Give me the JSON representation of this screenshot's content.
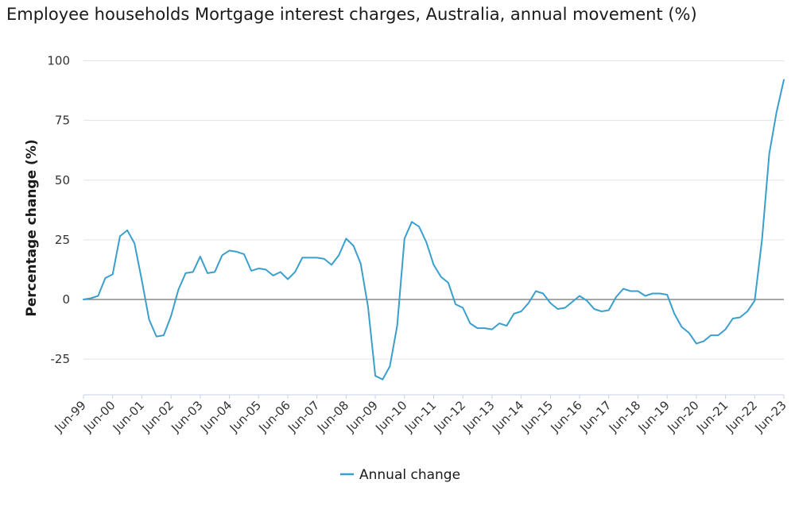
{
  "chart_data": {
    "type": "line",
    "title": "Employee households Mortgage interest charges, Australia, annual movement (%)",
    "ylabel": "Percentage change (%)",
    "xlabel": "",
    "ylim": [
      -40,
      100
    ],
    "yticks": [
      -25,
      0,
      25,
      50,
      75,
      100
    ],
    "ytick_labels": [
      "-25",
      "0",
      "25",
      "50",
      "75",
      "100"
    ],
    "xtick_labels": [
      "Jun-99",
      "Jun-00",
      "Jun-01",
      "Jun-02",
      "Jun-03",
      "Jun-04",
      "Jun-05",
      "Jun-06",
      "Jun-07",
      "Jun-08",
      "Jun-09",
      "Jun-10",
      "Jun-11",
      "Jun-12",
      "Jun-13",
      "Jun-14",
      "Jun-15",
      "Jun-16",
      "Jun-17",
      "Jun-18",
      "Jun-19",
      "Jun-20",
      "Jun-21",
      "Jun-22",
      "Jun-23"
    ],
    "grid": true,
    "legend_position": "bottom-center",
    "series": [
      {
        "name": "Annual change",
        "color": "#3a9fcc",
        "values": [
          0,
          0.5,
          1.5,
          9,
          10.5,
          26.5,
          29,
          23.5,
          8,
          -8.5,
          -15.5,
          -15,
          -7,
          4,
          11,
          11.5,
          18,
          11,
          11.5,
          18.5,
          20.5,
          20,
          19,
          12,
          13,
          12.5,
          10,
          11.5,
          8.5,
          11.5,
          17.5,
          17.5,
          17.5,
          17,
          14.5,
          18.5,
          25.5,
          22.5,
          15,
          -3,
          -32,
          -33.5,
          -28,
          -11,
          25.5,
          32.5,
          30.5,
          24,
          14.5,
          9.5,
          7,
          -2,
          -3.5,
          -10,
          -12,
          -12,
          -12.5,
          -10,
          -11,
          -6,
          -5,
          -1.5,
          3.5,
          2.5,
          -1.5,
          -4,
          -3.5,
          -1,
          1.5,
          -0.5,
          -4,
          -5,
          -4.5,
          1,
          4.5,
          3.5,
          3.5,
          1.5,
          2.5,
          2.5,
          2,
          -6,
          -11.5,
          -14,
          -18.5,
          -17.5,
          -15,
          -15,
          -12.5,
          -8,
          -7.5,
          -5,
          -0.5,
          25,
          61,
          78.5,
          92
        ]
      }
    ]
  }
}
